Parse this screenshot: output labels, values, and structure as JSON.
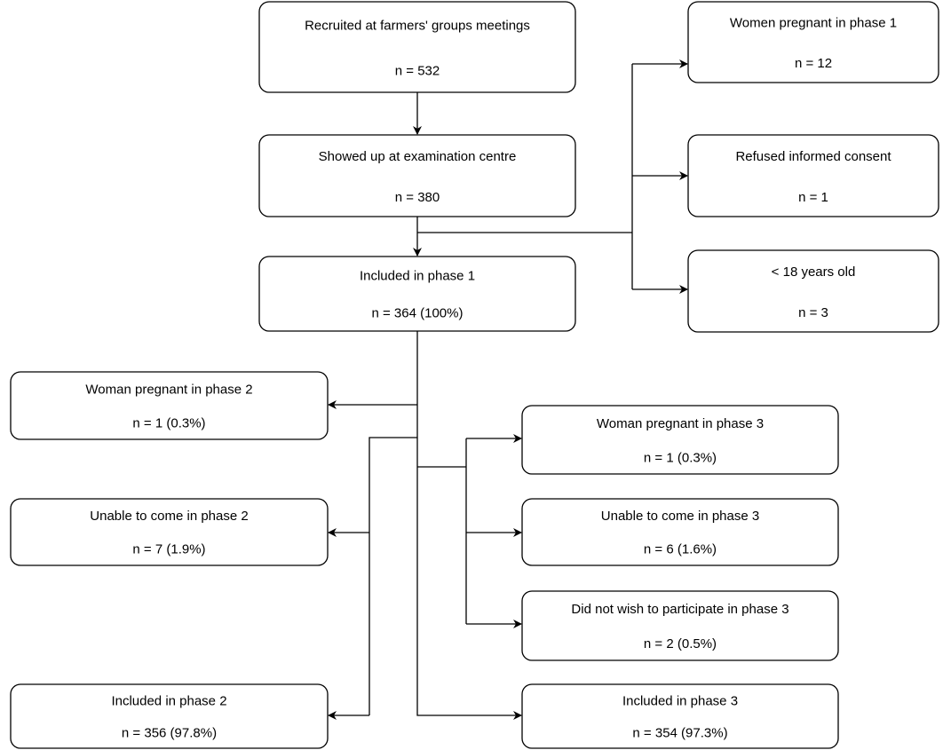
{
  "nodes": [
    {
      "label": "Recruited at farmers' groups meetings",
      "count": "n = 532"
    },
    {
      "label": "Showed up at examination centre",
      "count": "n = 380"
    },
    {
      "label": "Included in phase 1",
      "count": "n = 364 (100%)"
    },
    {
      "label": "Women pregnant in phase 1",
      "count": "n = 12"
    },
    {
      "label": "Refused informed consent",
      "count": "n = 1"
    },
    {
      "label": "< 18 years old",
      "count": "n = 3"
    },
    {
      "label": "Woman pregnant in phase 2",
      "count": "n = 1 (0.3%)"
    },
    {
      "label": "Unable to come in phase 2",
      "count": "n = 7 (1.9%)"
    },
    {
      "label": "Included in phase 2",
      "count": "n = 356 (97.8%)"
    },
    {
      "label": "Woman pregnant in phase 3",
      "count": "n = 1 (0.3%)"
    },
    {
      "label": "Unable to come in phase 3",
      "count": "n = 6 (1.6%)"
    },
    {
      "label": "Did not wish to participate in phase 3",
      "count": "n = 2 (0.5%)"
    },
    {
      "label": "Included in phase 3",
      "count": "n = 354 (97.3%)"
    }
  ]
}
